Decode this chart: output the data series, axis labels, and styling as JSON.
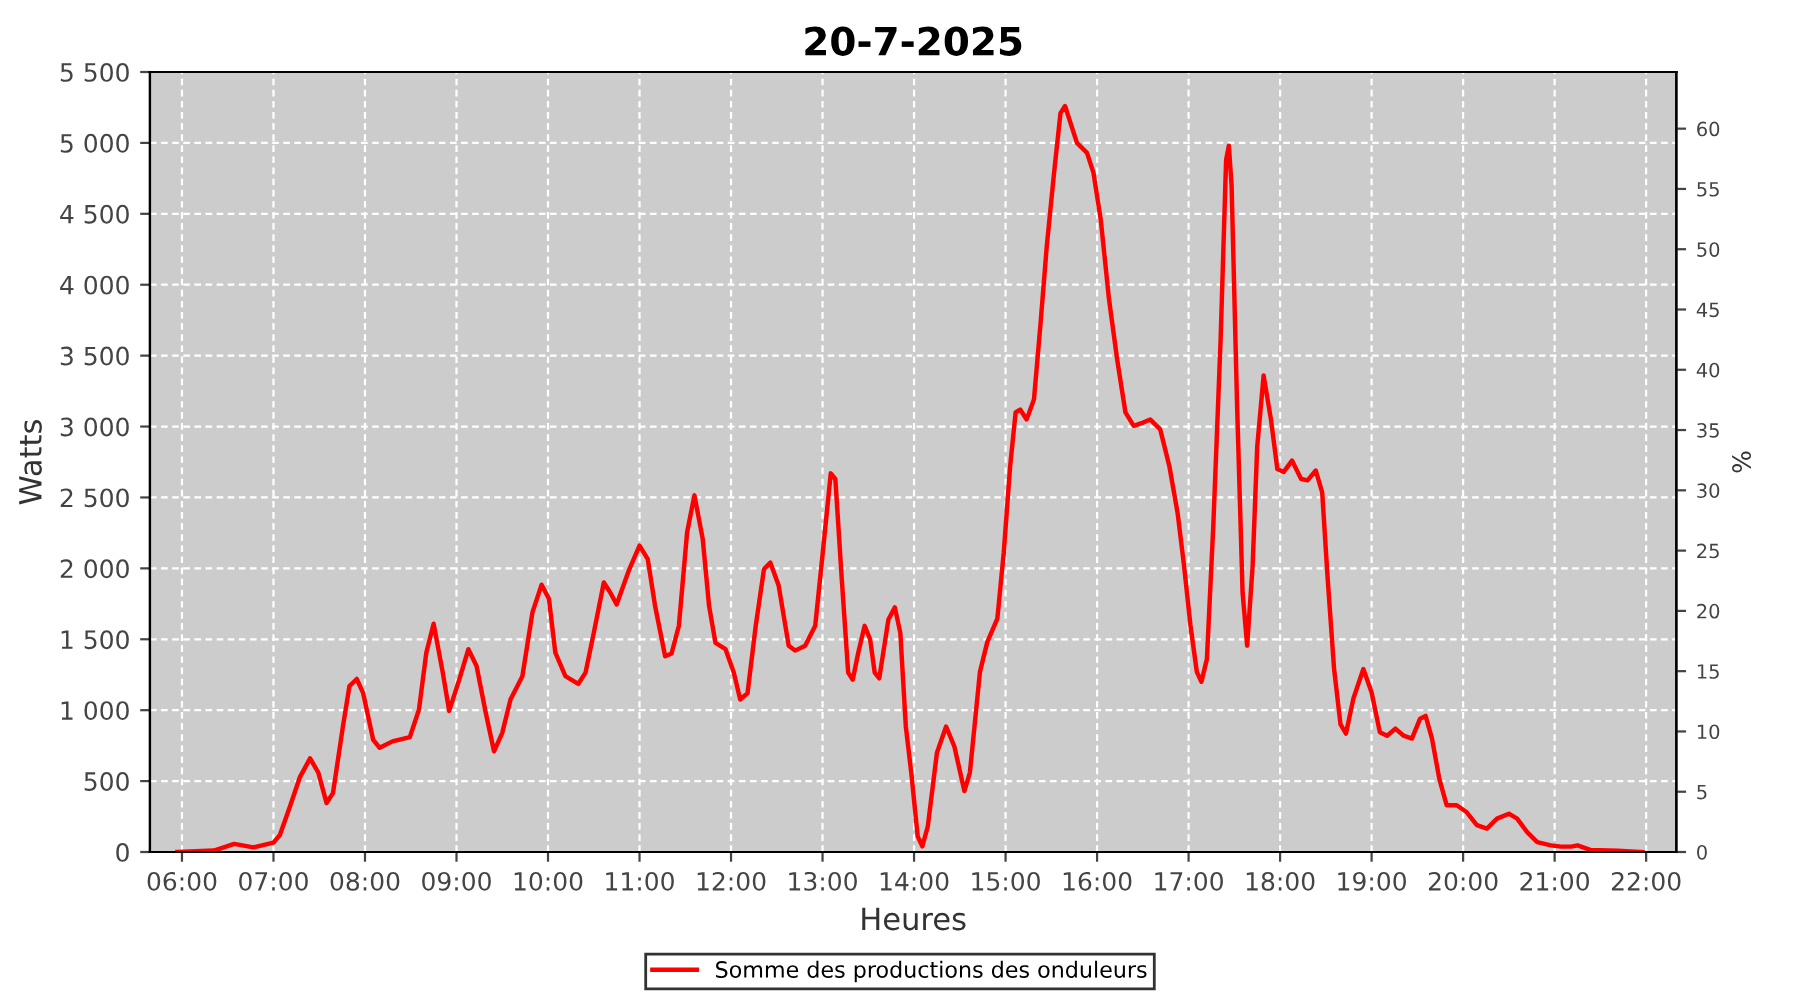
{
  "chart_data": {
    "type": "line",
    "title": "20-7-2025",
    "xlabel": "Heures",
    "ylabel": "Watts",
    "y2label": "%",
    "xlim": [
      5.65,
      22.33
    ],
    "xticks": [
      {
        "value": 6,
        "label": "06:00"
      },
      {
        "value": 7,
        "label": "07:00"
      },
      {
        "value": 8,
        "label": "08:00"
      },
      {
        "value": 9,
        "label": "09:00"
      },
      {
        "value": 10,
        "label": "10:00"
      },
      {
        "value": 11,
        "label": "11:00"
      },
      {
        "value": 12,
        "label": "12:00"
      },
      {
        "value": 13,
        "label": "13:00"
      },
      {
        "value": 14,
        "label": "14:00"
      },
      {
        "value": 15,
        "label": "15:00"
      },
      {
        "value": 16,
        "label": "16:00"
      },
      {
        "value": 17,
        "label": "17:00"
      },
      {
        "value": 18,
        "label": "18:00"
      },
      {
        "value": 19,
        "label": "19:00"
      },
      {
        "value": 20,
        "label": "20:00"
      },
      {
        "value": 21,
        "label": "21:00"
      },
      {
        "value": 22,
        "label": "22:00"
      }
    ],
    "ylim": [
      0,
      5500
    ],
    "yticks": [
      0,
      500,
      {
        "value": 1000,
        "label": "1 000"
      },
      {
        "value": 1500,
        "label": "1 500"
      },
      {
        "value": 2000,
        "label": "2 000"
      },
      {
        "value": 2500,
        "label": "2 500"
      },
      {
        "value": 3000,
        "label": "3 000"
      },
      {
        "value": 3500,
        "label": "3 500"
      },
      {
        "value": 4000,
        "label": "4 000"
      },
      {
        "value": 4500,
        "label": "4 500"
      },
      {
        "value": 5000,
        "label": "5 000"
      },
      {
        "value": 5500,
        "label": "5 500"
      }
    ],
    "y2lim": [
      0,
      64.7
    ],
    "y2ticks": [
      0,
      5,
      10,
      15,
      20,
      25,
      30,
      35,
      40,
      45,
      50,
      55,
      60
    ],
    "grid": true,
    "legend": "bottom",
    "line_style": "solid",
    "series": [
      {
        "name": "Somme des productions des onduleurs",
        "color": "#ff0000",
        "x": [
          5.95,
          6.35,
          6.57,
          6.78,
          7.0,
          7.07,
          7.18,
          7.29,
          7.4,
          7.49,
          7.58,
          7.65,
          7.76,
          7.83,
          7.91,
          7.98,
          8.09,
          8.16,
          8.3,
          8.49,
          8.59,
          8.67,
          8.75,
          8.85,
          8.92,
          9.03,
          9.13,
          9.22,
          9.32,
          9.41,
          9.5,
          9.59,
          9.72,
          9.83,
          9.93,
          10.01,
          10.08,
          10.19,
          10.33,
          10.41,
          10.5,
          10.61,
          10.68,
          10.75,
          10.88,
          11.0,
          11.09,
          11.17,
          11.28,
          11.35,
          11.43,
          11.52,
          11.6,
          11.69,
          11.76,
          11.83,
          11.94,
          12.03,
          12.1,
          12.18,
          12.27,
          12.36,
          12.43,
          12.52,
          12.63,
          12.7,
          12.81,
          12.92,
          13.01,
          13.09,
          13.14,
          13.21,
          13.28,
          13.33,
          13.39,
          13.46,
          13.52,
          13.57,
          13.62,
          13.72,
          13.79,
          13.85,
          13.91,
          13.97,
          14.04,
          14.09,
          14.15,
          14.25,
          14.35,
          14.44,
          14.55,
          14.61,
          14.72,
          14.8,
          14.91,
          14.98,
          15.05,
          15.11,
          15.16,
          15.23,
          15.31,
          15.38,
          15.45,
          15.53,
          15.6,
          15.65,
          15.71,
          15.78,
          15.89,
          15.96,
          16.04,
          16.13,
          16.22,
          16.31,
          16.4,
          16.51,
          16.58,
          16.69,
          16.79,
          16.88,
          16.95,
          17.02,
          17.09,
          17.14,
          17.2,
          17.27,
          17.35,
          17.41,
          17.44,
          17.47,
          17.53,
          17.59,
          17.64,
          17.7,
          17.75,
          17.82,
          17.9,
          17.97,
          18.04,
          18.13,
          18.23,
          18.3,
          18.39,
          18.46,
          18.52,
          18.59,
          18.66,
          18.72,
          18.8,
          18.91,
          19.0,
          19.09,
          19.17,
          19.26,
          19.35,
          19.44,
          19.53,
          19.59,
          19.66,
          19.74,
          19.82,
          19.93,
          20.04,
          20.15,
          20.26,
          20.37,
          20.5,
          20.59,
          20.7,
          20.81,
          20.96,
          21.07,
          21.18,
          21.25,
          21.39,
          21.69,
          21.96
        ],
        "values": [
          0,
          10,
          57,
          33,
          66,
          120,
          320,
          530,
          660,
          560,
          345,
          415,
          890,
          1170,
          1220,
          1120,
          790,
          735,
          780,
          810,
          1005,
          1405,
          1610,
          1265,
          995,
          1215,
          1430,
          1310,
          980,
          710,
          840,
          1075,
          1240,
          1690,
          1885,
          1785,
          1405,
          1240,
          1185,
          1265,
          1545,
          1900,
          1830,
          1745,
          1980,
          2160,
          2065,
          1735,
          1380,
          1400,
          1595,
          2255,
          2515,
          2210,
          1735,
          1475,
          1430,
          1265,
          1075,
          1120,
          1595,
          1995,
          2040,
          1880,
          1455,
          1420,
          1455,
          1595,
          2160,
          2670,
          2630,
          1925,
          1265,
          1215,
          1405,
          1595,
          1500,
          1265,
          1225,
          1640,
          1725,
          1545,
          885,
          555,
          110,
          40,
          180,
          700,
          885,
          745,
          430,
          560,
          1270,
          1480,
          1645,
          2110,
          2720,
          3100,
          3120,
          3050,
          3190,
          3710,
          4270,
          4790,
          5210,
          5260,
          5140,
          5000,
          4930,
          4790,
          4460,
          3900,
          3470,
          3100,
          3005,
          3030,
          3050,
          2980,
          2720,
          2390,
          2020,
          1600,
          1270,
          1200,
          1360,
          2300,
          3615,
          4880,
          4980,
          4700,
          3150,
          1830,
          1455,
          2020,
          2860,
          3360,
          3050,
          2700,
          2680,
          2760,
          2630,
          2620,
          2690,
          2535,
          1925,
          1290,
          900,
          835,
          1080,
          1290,
          1125,
          845,
          820,
          870,
          820,
          800,
          940,
          960,
          800,
          515,
          330,
          330,
          280,
          190,
          165,
          235,
          270,
          235,
          140,
          70,
          47,
          38,
          38,
          47,
          15,
          9,
          0
        ]
      }
    ]
  }
}
